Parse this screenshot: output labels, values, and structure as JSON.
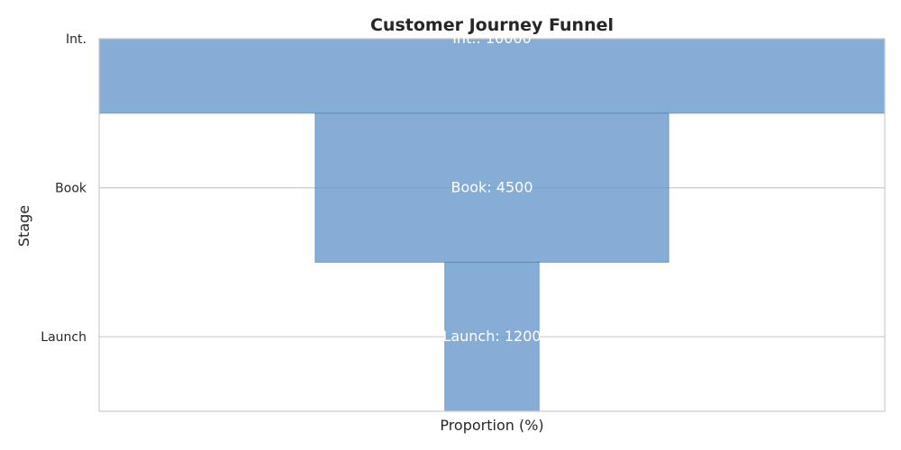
{
  "chart_data": {
    "type": "bar",
    "orientation": "horizontal-funnel",
    "title": "Customer Journey Funnel",
    "xlabel": "Proportion (%)",
    "ylabel": "Stage",
    "categories": [
      "Int.",
      "Book",
      "Launch"
    ],
    "values": [
      10000,
      4500,
      1200
    ],
    "bar_labels": [
      "Int.: 10000",
      "Book: 4500",
      "Launch: 1200"
    ],
    "xlim": [
      -50,
      50
    ],
    "grid": true,
    "colors": {
      "bar_fill": "#6699cc",
      "bar_edge": "#4a80bf",
      "grid": "#cccccc",
      "spine": "#cccccc"
    }
  }
}
